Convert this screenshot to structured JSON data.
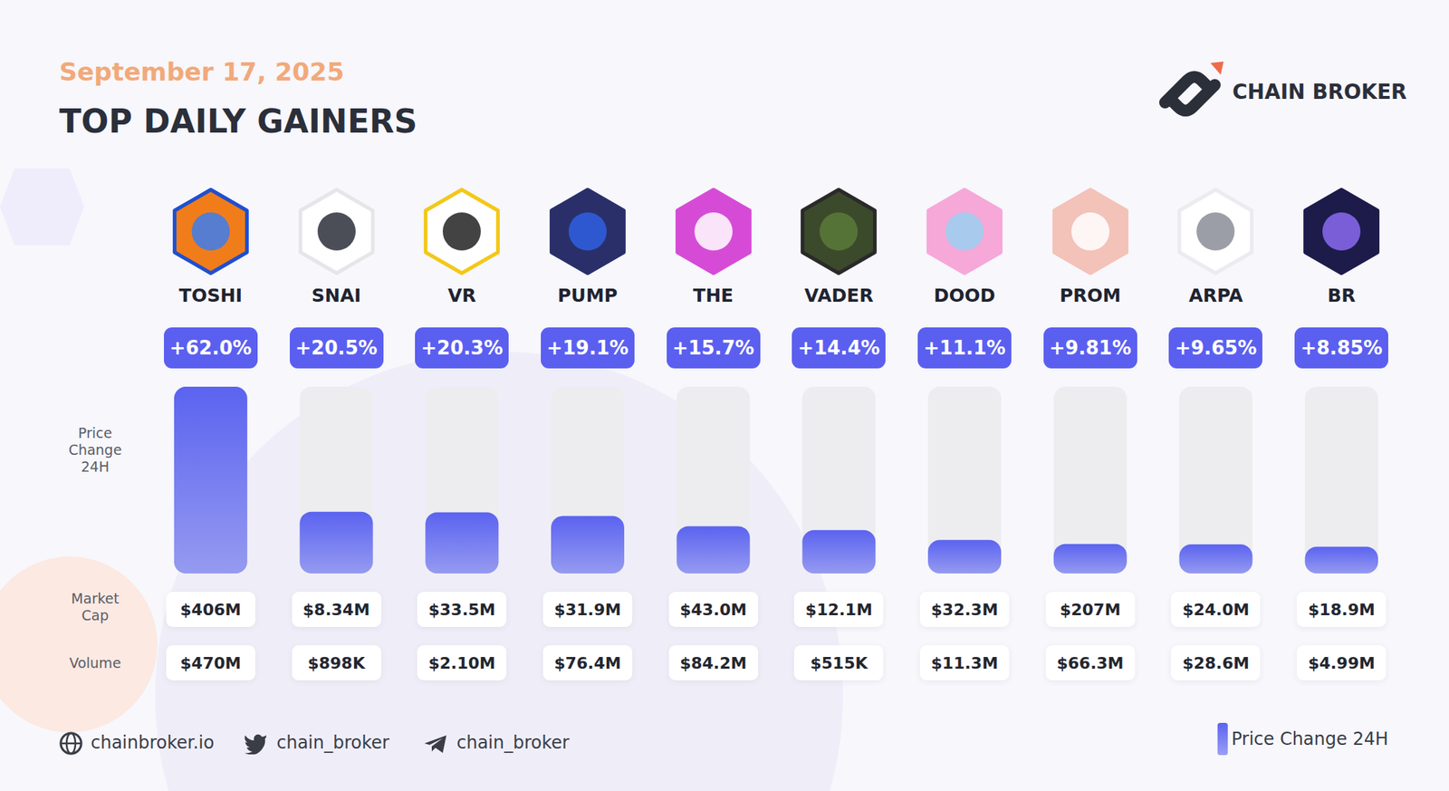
{
  "header": {
    "brand": "CHAIN BROKER"
  },
  "chart_data": {
    "type": "bar",
    "title": "TOP DAILY GAINERS",
    "subtitle": "September 17, 2025",
    "categories": [
      "TOSHI",
      "SNAI",
      "VR",
      "PUMP",
      "THE",
      "VADER",
      "DOOD",
      "PROM",
      "ARPA",
      "BR"
    ],
    "series": [
      {
        "name": "Price Change 24H",
        "color": "#5b63f0",
        "values": [
          62.0,
          20.5,
          20.3,
          19.1,
          15.7,
          14.4,
          11.1,
          9.81,
          9.65,
          8.85
        ],
        "value_labels": [
          "+62.0%",
          "+20.5%",
          "+20.3%",
          "+19.1%",
          "+15.7%",
          "+14.4%",
          "+11.1%",
          "+9.81%",
          "+9.65%",
          "+8.85%"
        ]
      }
    ],
    "ylim": [
      0,
      62
    ],
    "data_labels": true,
    "tick_labels": "x",
    "grid": false,
    "legend": "bottom right"
  },
  "rows": [
    {
      "label": "Market Cap",
      "labels": [
        "$406M",
        "$8.34M",
        "$33.5M",
        "$31.9M",
        "$43.0M",
        "$12.1M",
        "$32.3M",
        "$207M",
        "$24.0M",
        "$18.9M"
      ]
    },
    {
      "label": "Volume",
      "labels": [
        "$470M",
        "$898K",
        "$2.10M",
        "$76.4M",
        "$84.2M",
        "$515K",
        "$11.3M",
        "$66.3M",
        "$28.6M",
        "$4.99M"
      ]
    }
  ],
  "footer": {
    "website": "chainbroker.io",
    "twitter": "chain_broker",
    "telegram": "chain_broker"
  }
}
